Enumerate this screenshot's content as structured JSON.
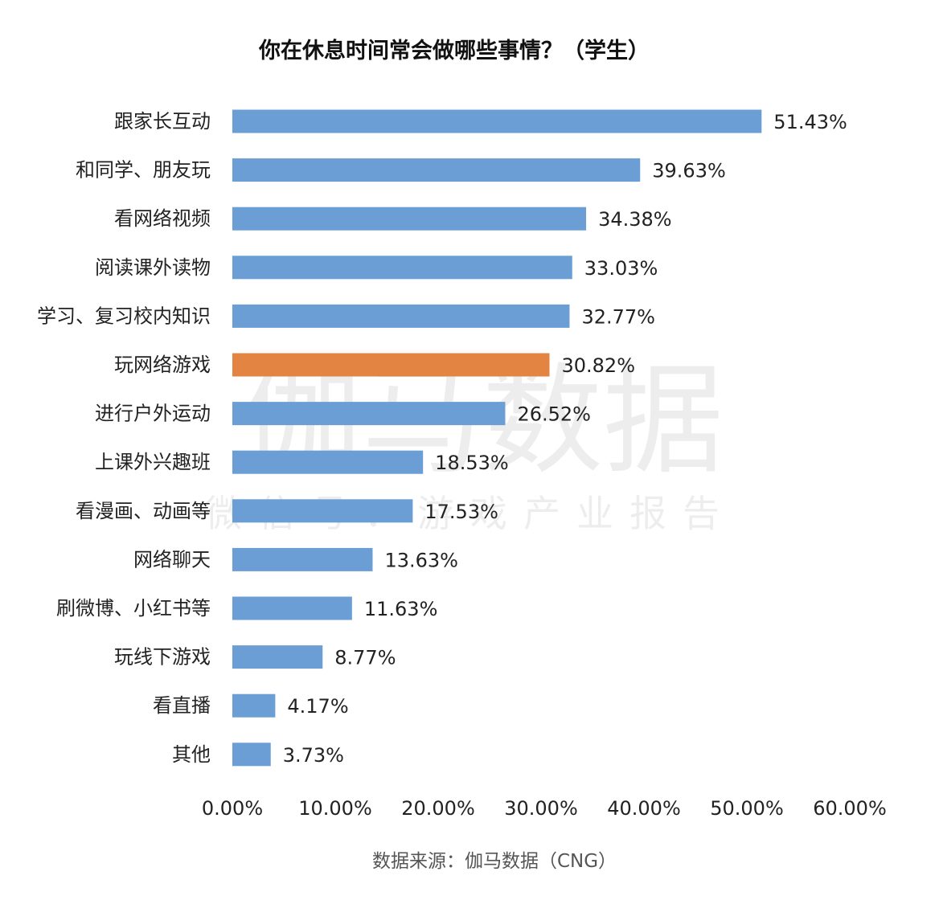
{
  "chart_data": {
    "type": "bar",
    "orientation": "horizontal",
    "title": "你在休息时间常会做哪些事情？（学生）",
    "categories": [
      "跟家长互动",
      "和同学、朋友玩",
      "看网络视频",
      "阅读课外读物",
      "学习、复习校内知识",
      "玩网络游戏",
      "进行户外运动",
      "上课外兴趣班",
      "看漫画、动画等",
      "网络聊天",
      "刷微博、小红书等",
      "玩线下游戏",
      "看直播",
      "其他"
    ],
    "values": [
      51.43,
      39.63,
      34.38,
      33.03,
      32.77,
      30.82,
      26.52,
      18.53,
      17.53,
      13.63,
      11.63,
      8.77,
      4.17,
      3.73
    ],
    "value_labels": [
      "51.43%",
      "39.63%",
      "34.38%",
      "33.03%",
      "32.77%",
      "30.82%",
      "26.52%",
      "18.53%",
      "17.53%",
      "13.63%",
      "11.63%",
      "8.77%",
      "4.17%",
      "3.73%"
    ],
    "xlim": [
      0,
      60
    ],
    "xticks": [
      "0.00%",
      "10.00%",
      "20.00%",
      "30.00%",
      "40.00%",
      "50.00%",
      "60.00%"
    ],
    "highlight_index": 5,
    "grid": false,
    "legend": "none"
  },
  "colors": {
    "bar": "#6A9ED4",
    "highlight": "#E38442"
  },
  "source": "数据来源：伽马数据（CNG）",
  "watermark": {
    "main": "伽马数据",
    "sub": "微信号：游戏产业报告"
  }
}
